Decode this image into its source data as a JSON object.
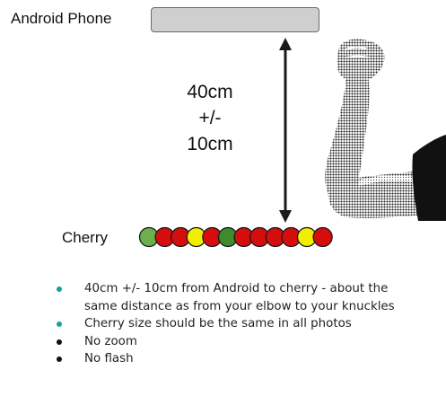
{
  "phone": {
    "label": "Android Phone",
    "bar_color": "#cfcfcf"
  },
  "distance": {
    "lines": [
      "40cm",
      "+/-",
      "10cm"
    ],
    "arrow_color": "#1a1a1a"
  },
  "cherry": {
    "label": "Cherry",
    "circles": [
      {
        "color": "#6ab04c"
      },
      {
        "color": "#d60d0d"
      },
      {
        "color": "#d60d0d"
      },
      {
        "color": "#f2ee00"
      },
      {
        "color": "#d60d0d"
      },
      {
        "color": "#3f8a2c"
      },
      {
        "color": "#d60d0d"
      },
      {
        "color": "#d60d0d"
      },
      {
        "color": "#d60d0d"
      },
      {
        "color": "#d60d0d"
      },
      {
        "color": "#f2ee00"
      },
      {
        "color": "#d60d0d"
      }
    ]
  },
  "figure": {
    "icon": "flexed-arm-icon",
    "description_visible": false
  },
  "notes": [
    {
      "text": "40cm +/- 10cm from Android  to cherry - about the same distance as from your elbow to your knuckles",
      "bullet_color": "#17a398"
    },
    {
      "text": "Cherry size should be the same in all photos",
      "bullet_color": "#17a398"
    },
    {
      "text": "No zoom",
      "bullet_color": "#111111"
    },
    {
      "text": "No flash",
      "bullet_color": "#111111"
    }
  ]
}
